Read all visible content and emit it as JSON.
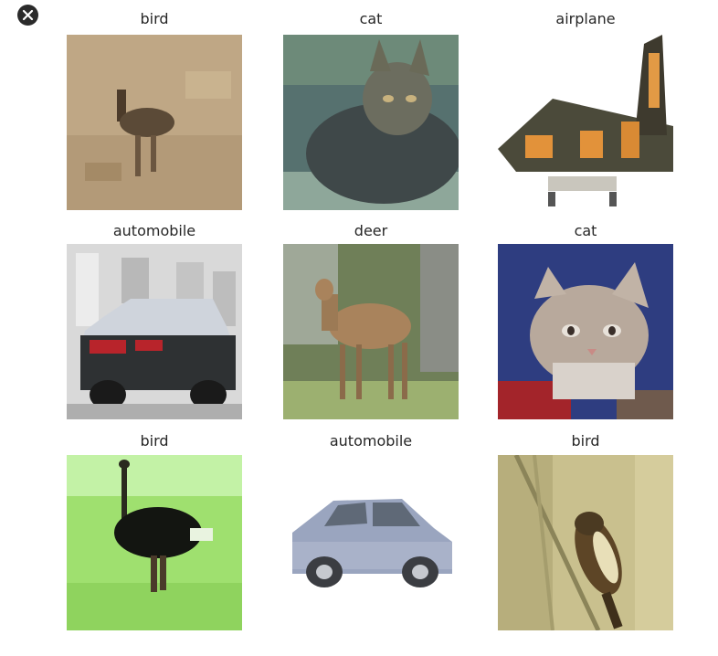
{
  "grid": {
    "items": [
      {
        "label": "bird",
        "subject": "bird",
        "background": "#bfa785",
        "accent": "#5b4a37"
      },
      {
        "label": "cat",
        "subject": "cat",
        "background": "#4f6a6a",
        "accent": "#c8b27e"
      },
      {
        "label": "airplane",
        "subject": "airplane",
        "background": "#ffffff",
        "accent": "#e2923a"
      },
      {
        "label": "automobile",
        "subject": "automobile",
        "background": "#d8d8d8",
        "accent": "#2e3133"
      },
      {
        "label": "deer",
        "subject": "deer",
        "background": "#6f7f58",
        "accent": "#a9835c"
      },
      {
        "label": "cat",
        "subject": "cat",
        "background": "#2e3d80",
        "accent": "#d9d2cb"
      },
      {
        "label": "bird",
        "subject": "bird",
        "background": "#b6ee8e",
        "accent": "#131511"
      },
      {
        "label": "automobile",
        "subject": "automobile",
        "background": "#ffffff",
        "accent": "#9aa5bf"
      },
      {
        "label": "bird",
        "subject": "bird",
        "background": "#c9c08e",
        "accent": "#5d4526"
      }
    ]
  },
  "close_icon": "close-circle-icon"
}
